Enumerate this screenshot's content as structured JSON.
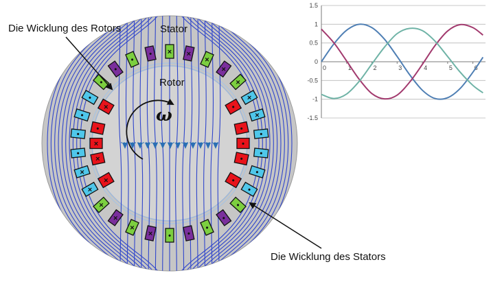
{
  "labels": {
    "rotor_winding": "Die Wicklung des Rotors",
    "stator": "Stator",
    "rotor": "Rotor",
    "omega": "ω",
    "stator_winding": "Die Wicklung des Stators"
  },
  "symbols": {
    "cross": "×",
    "dot": "•"
  },
  "colors": {
    "stator_background": "#c6c6c6",
    "rotor_background": "#d3d3d3",
    "field_lines": "#2f45cc",
    "phase_red": "#e8131b",
    "phase_cyan": "#4fc7ea",
    "phase_green": "#7ccf3f",
    "phase_purple": "#7a2f9c",
    "curve_a": "#4f7fb4",
    "curve_b": "#a23a6e",
    "curve_c": "#6fb3a6"
  },
  "chart_data": {
    "type": "line",
    "xlim": [
      0,
      6.5
    ],
    "ylim": [
      -1.5,
      1.5
    ],
    "x_ticks": [
      "0",
      "1",
      "2",
      "3",
      "4",
      "5",
      "6"
    ],
    "y_ticks": [
      "1.5",
      "1",
      "0.5",
      "0",
      "-0.5",
      "-1",
      "-1.5"
    ],
    "grid": true,
    "x": [
      0,
      0.5,
      1,
      1.5,
      2,
      2.5,
      3,
      3.5,
      4,
      4.5,
      5,
      5.5,
      6,
      6.4
    ],
    "series": [
      {
        "color": "#4f7fb4",
        "values": [
          0,
          0.48,
          0.84,
          1.0,
          0.91,
          0.6,
          0.14,
          -0.35,
          -0.76,
          -0.98,
          -0.96,
          -0.71,
          -0.28,
          0.12
        ]
      },
      {
        "color": "#a23a6e",
        "values": [
          0.87,
          0.5,
          0.02,
          -0.47,
          -0.85,
          -0.99,
          -0.89,
          -0.54,
          -0.07,
          0.43,
          0.82,
          0.99,
          0.91,
          0.71
        ]
      },
      {
        "color": "#6fb3a6",
        "values": [
          -0.87,
          -0.98,
          -0.86,
          -0.52,
          -0.06,
          0.39,
          0.75,
          0.89,
          0.83,
          0.55,
          0.14,
          -0.28,
          -0.63,
          -0.83
        ]
      }
    ]
  }
}
